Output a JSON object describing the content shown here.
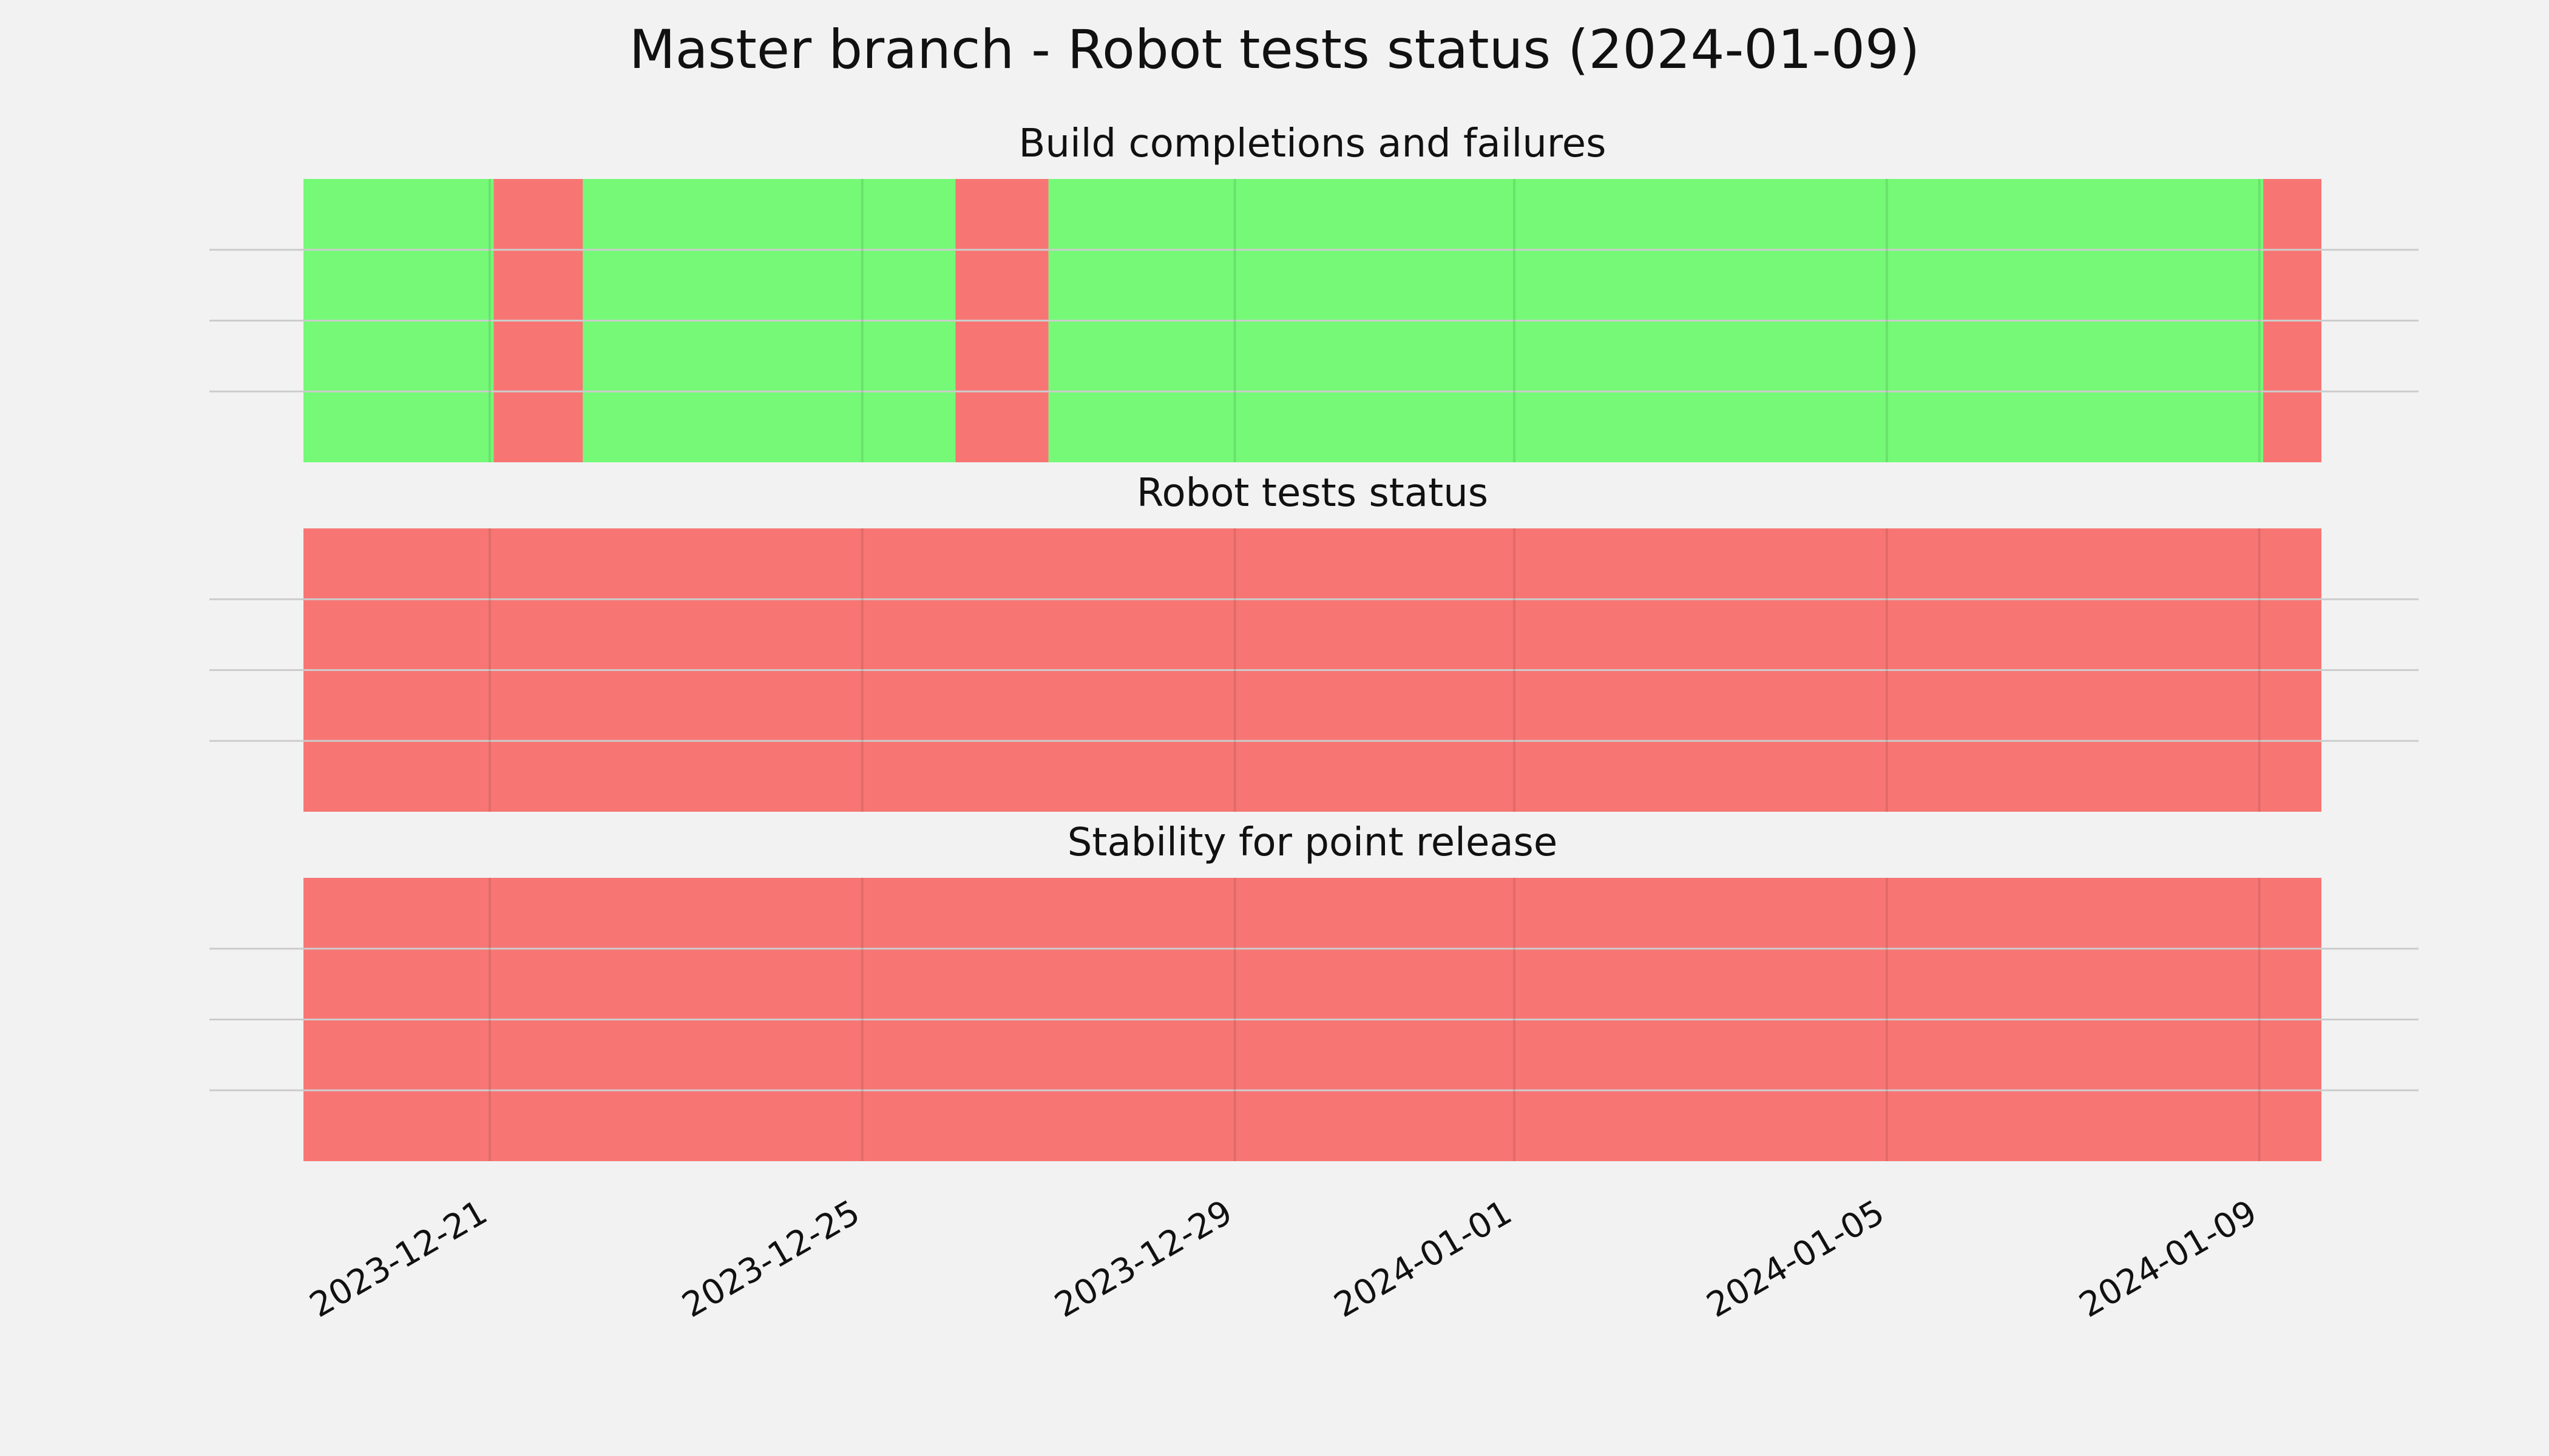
{
  "title": "Master branch - Robot tests status (2024-01-09)",
  "colors": {
    "pass": "#75f977",
    "fail": "#f77674",
    "grid": "#cccccc",
    "background": "#f2f2f2"
  },
  "chart_data": {
    "type": "timeline",
    "xlim": [
      "2023-12-19",
      "2024-01-09T16:00"
    ],
    "xticks": [
      "2023-12-21",
      "2023-12-25",
      "2023-12-29",
      "2024-01-01",
      "2024-01-05",
      "2024-01-09"
    ],
    "grid": true,
    "panels": [
      {
        "title": "Build completions and failures",
        "segments": [
          {
            "start": "2023-12-19",
            "end": "2023-12-21T01:00",
            "status": "pass"
          },
          {
            "start": "2023-12-21T01:00",
            "end": "2023-12-22",
            "status": "fail"
          },
          {
            "start": "2023-12-22",
            "end": "2023-12-26",
            "status": "pass"
          },
          {
            "start": "2023-12-26",
            "end": "2023-12-27",
            "status": "fail"
          },
          {
            "start": "2023-12-27",
            "end": "2024-01-09T01:00",
            "status": "pass"
          },
          {
            "start": "2024-01-09T01:00",
            "end": "2024-01-09T16:00",
            "status": "fail"
          }
        ]
      },
      {
        "title": "Robot tests status",
        "segments": [
          {
            "start": "2023-12-19",
            "end": "2024-01-09T16:00",
            "status": "fail"
          }
        ]
      },
      {
        "title": "Stability for point release",
        "segments": [
          {
            "start": "2023-12-19",
            "end": "2024-01-09T16:00",
            "status": "fail"
          }
        ]
      }
    ]
  }
}
